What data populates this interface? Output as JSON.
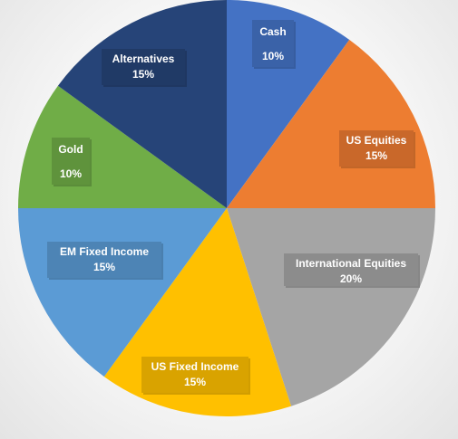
{
  "chart_data": {
    "type": "pie",
    "start_angle_deg": 0,
    "direction": "clockwise",
    "slices": [
      {
        "label": "Cash",
        "value": 10,
        "value_text": "10%",
        "color": "#4472C4",
        "label_bg": "#3A62A8",
        "label_layout": "two-line"
      },
      {
        "label": "US Equities",
        "value": 15,
        "value_text": "15%",
        "color": "#ED7D31",
        "label_bg": "#C9682A",
        "label_layout": "two-line"
      },
      {
        "label": "International Equities",
        "value": 20,
        "value_text": "20%",
        "color": "#A5A5A5",
        "label_bg": "#8C8C8C",
        "label_layout": "two-line"
      },
      {
        "label": "US Fixed Income",
        "value": 15,
        "value_text": "15%",
        "color": "#FFC000",
        "label_bg": "#D9A300",
        "label_layout": "two-line"
      },
      {
        "label": "EM Fixed Income",
        "value": 15,
        "value_text": "15%",
        "color": "#5B9BD5",
        "label_bg": "#4D84B5",
        "label_layout": "two-line"
      },
      {
        "label": "Gold",
        "value": 10,
        "value_text": "10%",
        "color": "#70AD47",
        "label_bg": "#5F933C",
        "label_layout": "two-line"
      },
      {
        "label": "Alternatives",
        "value": 15,
        "value_text": "15%",
        "color": "#264478",
        "label_bg": "#203A66",
        "label_layout": "two-line"
      }
    ]
  }
}
